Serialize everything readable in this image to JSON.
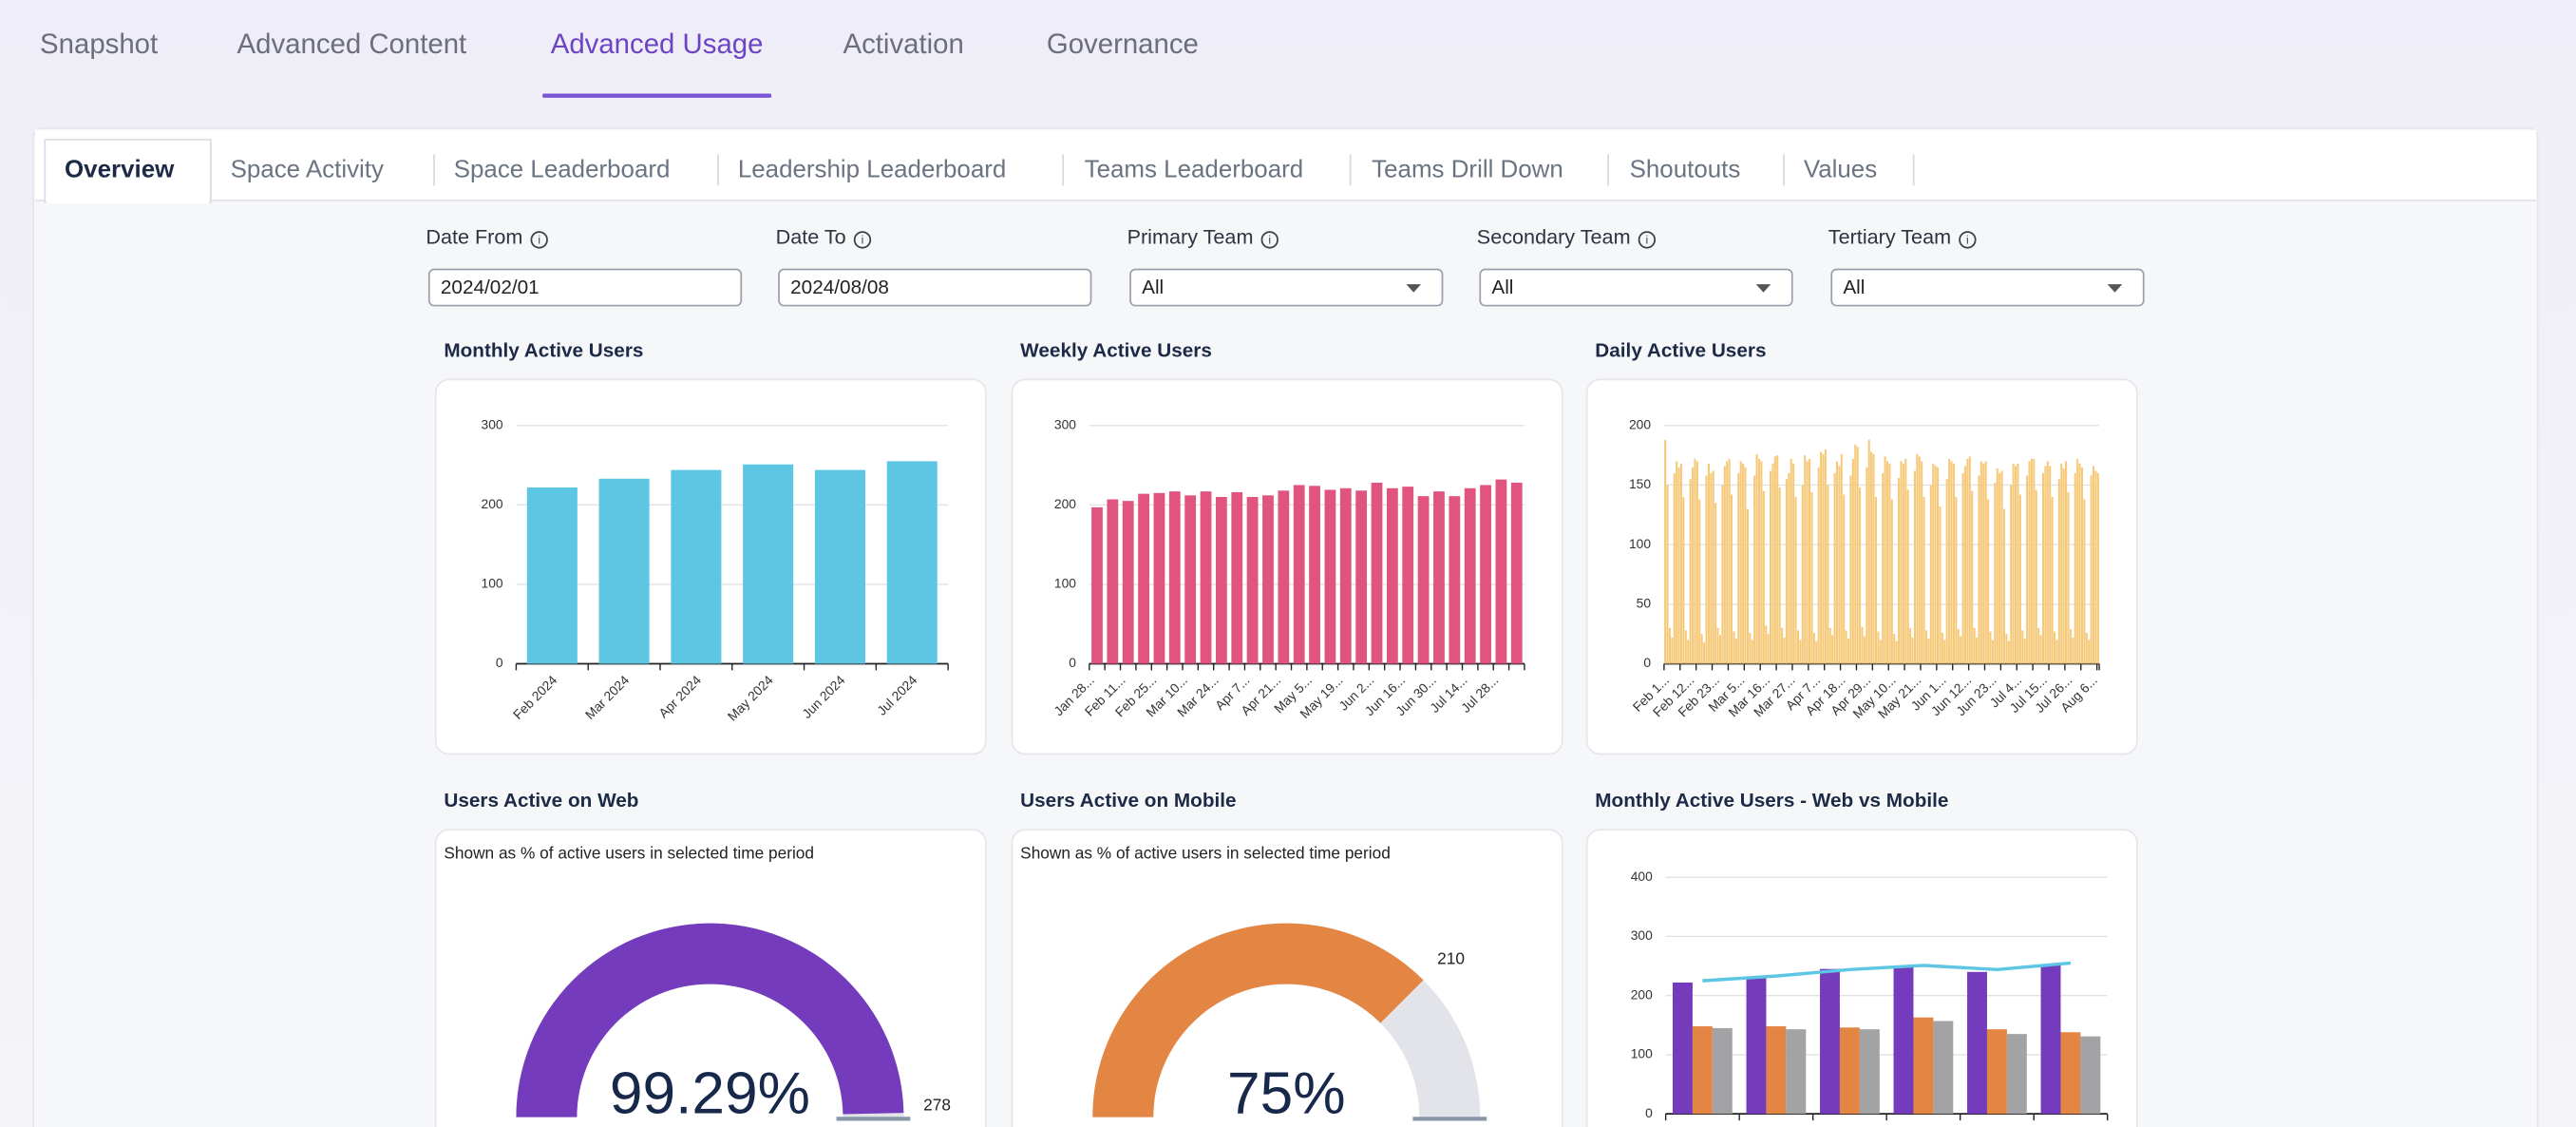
{
  "nav": {
    "tabs": [
      "Snapshot",
      "Advanced Content",
      "Advanced Usage",
      "Activation",
      "Governance"
    ],
    "active": 2
  },
  "subnav": {
    "tabs": [
      "Overview",
      "Space Activity",
      "Space Leaderboard",
      "Leadership Leaderboard",
      "Teams Leaderboard",
      "Teams Drill Down",
      "Shoutouts",
      "Values"
    ],
    "active": 0
  },
  "filters": [
    {
      "label": "Date From",
      "value": "2024/02/01"
    },
    {
      "label": "Date To",
      "value": "2024/08/08"
    },
    {
      "label": "Primary Team",
      "value": "All"
    },
    {
      "label": "Secondary Team",
      "value": "All"
    },
    {
      "label": "Tertiary Team",
      "value": "All"
    }
  ],
  "charts": [
    {
      "type": "bar",
      "title": "Monthly Active Users",
      "color": "#5cc6e3",
      "categories": [
        "Feb 2024",
        "Mar 2024",
        "Apr 2024",
        "May 2024",
        "Jun 2024",
        "Jul 2024"
      ],
      "values": [
        222,
        233,
        244,
        251,
        244,
        255
      ],
      "ylim": [
        0,
        300
      ],
      "yticks": [
        0,
        100,
        200,
        300
      ]
    },
    {
      "type": "bar",
      "title": "Weekly Active Users",
      "color": "#e0547f",
      "categories": [
        "Jan 28...",
        null,
        "Feb 11...",
        null,
        "Feb 25...",
        null,
        "Mar 10...",
        null,
        "Mar 24...",
        null,
        "Apr 7...",
        null,
        "Apr 21...",
        null,
        "May 5...",
        null,
        "May 19...",
        null,
        "Jun 2...",
        null,
        "Jun 16...",
        null,
        "Jun 30...",
        null,
        "Jul 14...",
        null,
        "Jul 28...",
        null
      ],
      "values": [
        197,
        207,
        205,
        214,
        215,
        217,
        212,
        217,
        210,
        216,
        210,
        212,
        218,
        225,
        224,
        219,
        221,
        218,
        228,
        221,
        223,
        211,
        217,
        211,
        221,
        225,
        232,
        228
      ],
      "ylim": [
        0,
        300
      ],
      "yticks": [
        0,
        100,
        200,
        300
      ]
    },
    {
      "type": "bar",
      "title": "Daily Active Users",
      "color": "#f6c979",
      "categories": [
        "Feb 1...",
        null,
        null,
        null,
        null,
        null,
        null,
        null,
        null,
        null,
        null,
        "Feb 12...",
        null,
        null,
        null,
        null,
        null,
        null,
        null,
        null,
        null,
        null,
        "Feb 23...",
        null,
        null,
        null,
        null,
        null,
        null,
        null,
        null,
        null,
        null,
        "Mar 5...",
        null,
        null,
        null,
        null,
        null,
        null,
        null,
        null,
        null,
        null,
        "Mar 16...",
        null,
        null,
        null,
        null,
        null,
        null,
        null,
        null,
        null,
        null,
        "Mar 27...",
        null,
        null,
        null,
        null,
        null,
        null,
        null,
        null,
        null,
        null,
        "Apr 7...",
        null,
        null,
        null,
        null,
        null,
        null,
        null,
        null,
        null,
        null,
        "Apr 18...",
        null,
        null,
        null,
        null,
        null,
        null,
        null,
        null,
        null,
        null,
        "Apr 29...",
        null,
        null,
        null,
        null,
        null,
        null,
        null,
        null,
        null,
        null,
        "May 10...",
        null,
        null,
        null,
        null,
        null,
        null,
        null,
        null,
        null,
        null,
        "May 21...",
        null,
        null,
        null,
        null,
        null,
        null,
        null,
        null,
        null,
        null,
        "Jun 1...",
        null,
        null,
        null,
        null,
        null,
        null,
        null,
        null,
        null,
        null,
        "Jun 12...",
        null,
        null,
        null,
        null,
        null,
        null,
        null,
        null,
        null,
        null,
        "Jun 23...",
        null,
        null,
        null,
        null,
        null,
        null,
        null,
        null,
        null,
        null,
        "Jul 4...",
        null,
        null,
        null,
        null,
        null,
        null,
        null,
        null,
        null,
        null,
        "Jul 15...",
        null,
        null,
        null,
        null,
        null,
        null,
        null,
        null,
        null,
        null,
        "Jul 26...",
        null,
        null,
        null,
        null,
        null,
        null,
        null,
        null,
        null,
        null,
        "Aug 6...",
        null,
        null
      ],
      "values": [
        188,
        150,
        30,
        22,
        160,
        170,
        165,
        168,
        140,
        28,
        20,
        155,
        165,
        172,
        170,
        138,
        25,
        18,
        158,
        168,
        160,
        162,
        135,
        30,
        24,
        150,
        166,
        170,
        172,
        142,
        27,
        21,
        160,
        170,
        168,
        165,
        130,
        26,
        20,
        158,
        176,
        172,
        170,
        145,
        32,
        25,
        162,
        168,
        174,
        175,
        148,
        30,
        22,
        155,
        160,
        172,
        168,
        140,
        28,
        20,
        150,
        175,
        170,
        172,
        144,
        26,
        19,
        165,
        178,
        176,
        180,
        150,
        30,
        24,
        160,
        170,
        166,
        176,
        142,
        28,
        21,
        158,
        172,
        184,
        182,
        148,
        31,
        23,
        165,
        188,
        178,
        176,
        140,
        27,
        20,
        160,
        174,
        170,
        168,
        138,
        25,
        19,
        156,
        170,
        168,
        172,
        146,
        30,
        22,
        162,
        176,
        174,
        170,
        140,
        28,
        21,
        150,
        168,
        166,
        165,
        132,
        26,
        20,
        155,
        172,
        170,
        168,
        140,
        29,
        23,
        160,
        166,
        172,
        174,
        145,
        30,
        22,
        158,
        170,
        168,
        170,
        138,
        27,
        20,
        152,
        164,
        160,
        162,
        130,
        25,
        19,
        150,
        168,
        166,
        168,
        142,
        28,
        21,
        158,
        170,
        172,
        172,
        146,
        30,
        24,
        160,
        166,
        170,
        166,
        140,
        27,
        20,
        155,
        168,
        164,
        170,
        144,
        29,
        22,
        160,
        172,
        168,
        165,
        138,
        26,
        20,
        158,
        166,
        162,
        160
      ],
      "ylim": [
        0,
        200
      ],
      "yticks": [
        0,
        50,
        100,
        150,
        200
      ]
    },
    {
      "type": "gauge",
      "title": "Users Active on Web",
      "subtitle": "Shown as % of active users in selected time period",
      "value": 99.29,
      "value_label": "99.29%",
      "count": 278,
      "color": "#743cbc"
    },
    {
      "type": "gauge",
      "title": "Users Active on Mobile",
      "subtitle": "Shown as % of active users in selected time period",
      "value": 75,
      "value_label": "75%",
      "count": 210,
      "color": "#e38543"
    },
    {
      "type": "combo",
      "title": "Monthly Active Users - Web vs Mobile",
      "series": [
        {
          "color": "#743cbc",
          "values": [
            222,
            230,
            245,
            248,
            240,
            252
          ]
        },
        {
          "color": "#e38543",
          "values": [
            148,
            148,
            146,
            163,
            143,
            138
          ]
        },
        {
          "color": "#a3a3a6",
          "values": [
            145,
            143,
            143,
            157,
            135,
            131
          ]
        },
        {
          "color": "#5cc6e3",
          "values": [
            225,
            233,
            244,
            251,
            244,
            255
          ],
          "kind": "line"
        }
      ],
      "ylim": [
        0,
        400
      ],
      "yticks": [
        0,
        100,
        200,
        300,
        400
      ]
    }
  ]
}
